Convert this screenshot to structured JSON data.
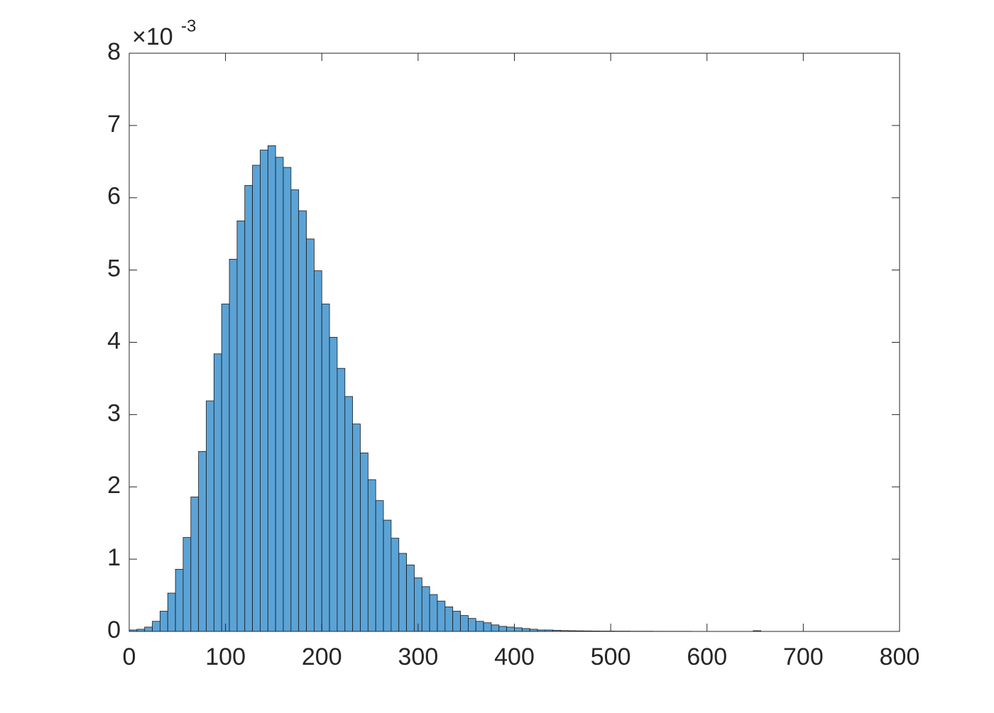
{
  "chart_data": {
    "type": "histogram",
    "y_exponent": {
      "base": "×10",
      "power": "-3"
    },
    "bins": [
      0,
      8,
      16,
      24,
      32,
      40,
      48,
      56,
      64,
      72,
      80,
      88,
      96,
      104,
      112,
      120,
      128,
      136,
      144,
      152,
      160,
      168,
      176,
      184,
      192,
      200,
      208,
      216,
      224,
      232,
      240,
      248,
      256,
      264,
      272,
      280,
      288,
      296,
      304,
      312,
      320,
      328,
      336,
      344,
      352,
      360,
      368,
      376,
      384,
      392,
      400,
      408,
      416,
      424,
      432,
      440,
      448,
      456,
      464,
      472,
      480,
      488,
      496,
      504,
      512,
      520,
      528,
      536,
      544,
      552,
      560,
      568,
      576,
      584,
      592,
      600,
      608,
      616,
      624,
      632,
      640,
      648,
      656
    ],
    "values": [
      0.02,
      0.03,
      0.06,
      0.14,
      0.28,
      0.53,
      0.86,
      1.3,
      1.86,
      2.49,
      3.19,
      3.84,
      4.53,
      5.15,
      5.68,
      6.17,
      6.45,
      6.66,
      6.72,
      6.56,
      6.42,
      6.11,
      5.82,
      5.43,
      4.99,
      4.53,
      4.07,
      3.64,
      3.25,
      2.87,
      2.47,
      2.1,
      1.81,
      1.54,
      1.29,
      1.08,
      0.92,
      0.74,
      0.62,
      0.51,
      0.42,
      0.34,
      0.28,
      0.22,
      0.18,
      0.14,
      0.12,
      0.09,
      0.07,
      0.06,
      0.05,
      0.04,
      0.03,
      0.02,
      0.02,
      0.015,
      0.012,
      0.01,
      0.008,
      0.007,
      0.006,
      0.005,
      0.005,
      0.004,
      0.004,
      0.003,
      0.003,
      0.003,
      0.002,
      0.002,
      0.002,
      0.002,
      0.002,
      0.001,
      0.001,
      0.001,
      0,
      0,
      0,
      0,
      0,
      0.01
    ],
    "color": "#5ba3d6",
    "xlim": [
      0,
      800
    ],
    "xticks": [
      0,
      100,
      200,
      300,
      400,
      500,
      600,
      700,
      800
    ],
    "ylim": [
      0,
      8
    ],
    "yticks": [
      0,
      1,
      2,
      3,
      4,
      5,
      6,
      7,
      8
    ]
  }
}
